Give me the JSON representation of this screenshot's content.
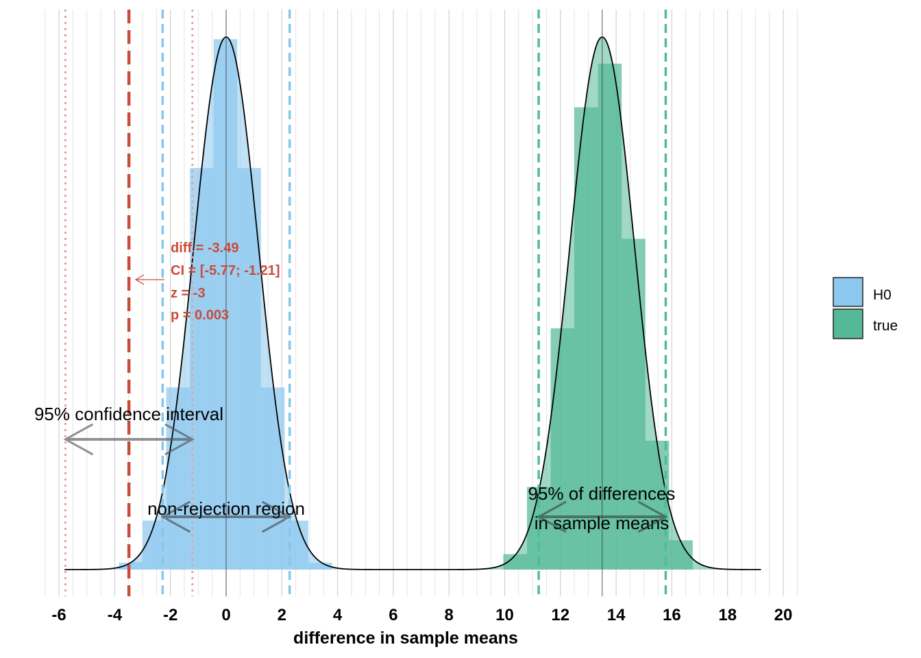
{
  "chart_data": {
    "type": "histogram",
    "xlabel": "difference in sample means",
    "ylabel": "",
    "xlim": [
      -6.5,
      20.5
    ],
    "x_ticks": [
      -6,
      -4,
      -2,
      0,
      2,
      4,
      6,
      8,
      10,
      12,
      14,
      16,
      18,
      20
    ],
    "x_tick_labels": [
      "-6",
      "-4",
      "-2",
      "0",
      "2",
      "4",
      "6",
      "8",
      "10",
      "12",
      "14",
      "16",
      "18",
      "20"
    ],
    "minor_gridlines_every": 0.5,
    "series": [
      {
        "name": "H0",
        "color": "#8dc8ee",
        "mean": 0,
        "sd": 1.163,
        "histogram": {
          "bins": [
            {
              "from": -3.85,
              "to": -3.42,
              "density": 0.013
            },
            {
              "from": -3.42,
              "to": -3.0,
              "density": 0.014
            },
            {
              "from": -3.0,
              "to": -2.15,
              "density": 0.092
            },
            {
              "from": -2.15,
              "to": -1.3,
              "density": 0.342
            },
            {
              "from": -1.3,
              "to": -0.45,
              "density": 0.754
            },
            {
              "from": -0.45,
              "to": 0.4,
              "density": 0.996
            },
            {
              "from": 0.4,
              "to": 1.25,
              "density": 0.754
            },
            {
              "from": 1.25,
              "to": 2.1,
              "density": 0.342
            },
            {
              "from": 2.1,
              "to": 2.95,
              "density": 0.092
            },
            {
              "from": 2.95,
              "to": 3.8,
              "density": 0.013
            }
          ]
        },
        "reference_lines": {
          "mean": 0,
          "lower_2_5": -2.28,
          "upper_97_5": 2.28
        }
      },
      {
        "name": "true",
        "color": "#54b996",
        "mean": 13.5,
        "sd": 1.163,
        "histogram": {
          "bins": [
            {
              "from": 9.95,
              "to": 10.8,
              "density": 0.029
            },
            {
              "from": 10.8,
              "to": 11.65,
              "density": 0.155
            },
            {
              "from": 11.65,
              "to": 12.5,
              "density": 0.453
            },
            {
              "from": 12.5,
              "to": 13.35,
              "density": 0.868
            },
            {
              "from": 13.35,
              "to": 14.2,
              "density": 0.95
            },
            {
              "from": 14.2,
              "to": 15.05,
              "density": 0.621
            },
            {
              "from": 15.05,
              "to": 15.9,
              "density": 0.242
            },
            {
              "from": 15.9,
              "to": 16.75,
              "density": 0.055
            }
          ]
        },
        "reference_lines": {
          "mean": 13.5,
          "lower_2_5": 11.22,
          "upper_97_5": 15.78
        }
      }
    ],
    "observed": {
      "diff": -3.49,
      "ci": [
        -5.77,
        -1.21
      ],
      "z": -3,
      "p": 0.003,
      "color": "#c84b3c",
      "stat_lines": [
        "diff = -3.49",
        "CI = [-5.77; -1.21]",
        "z = -3",
        "p = 0.003"
      ]
    },
    "annotations": {
      "ci_label": "95% confidence interval",
      "nonrejection_label": "non-rejection region",
      "true_range_label_line1": "95% of differences",
      "true_range_label_line2": "in sample means"
    },
    "legend": {
      "position": "right",
      "entries": [
        {
          "label": "H0",
          "color": "#8dc8ee"
        },
        {
          "label": "true",
          "color": "#54b996"
        }
      ]
    }
  }
}
